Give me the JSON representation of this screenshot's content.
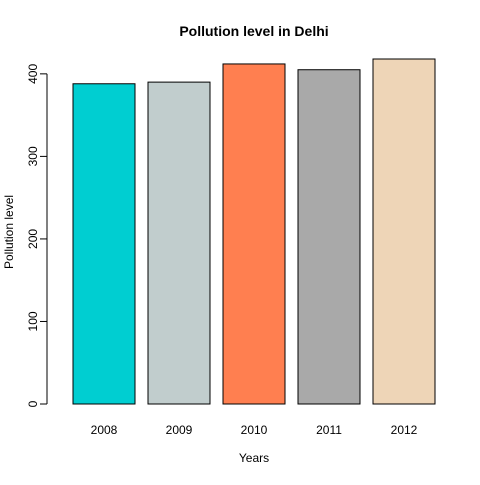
{
  "chart_data": {
    "type": "bar",
    "title": "Pollution level in Delhi",
    "xlabel": "Years",
    "ylabel": "Pollution level",
    "categories": [
      "2008",
      "2009",
      "2010",
      "2011",
      "2012"
    ],
    "values": [
      388,
      390,
      412,
      405,
      418
    ],
    "colors": [
      "#00CED1",
      "#C1CDCD",
      "#FF7F50",
      "#A9A9A9",
      "#EED5B7"
    ],
    "bar_border_color": "#000000",
    "ylim": [
      0,
      418
    ],
    "yticks": [
      0,
      100,
      200,
      300,
      400
    ],
    "grid": false,
    "legend": false
  }
}
